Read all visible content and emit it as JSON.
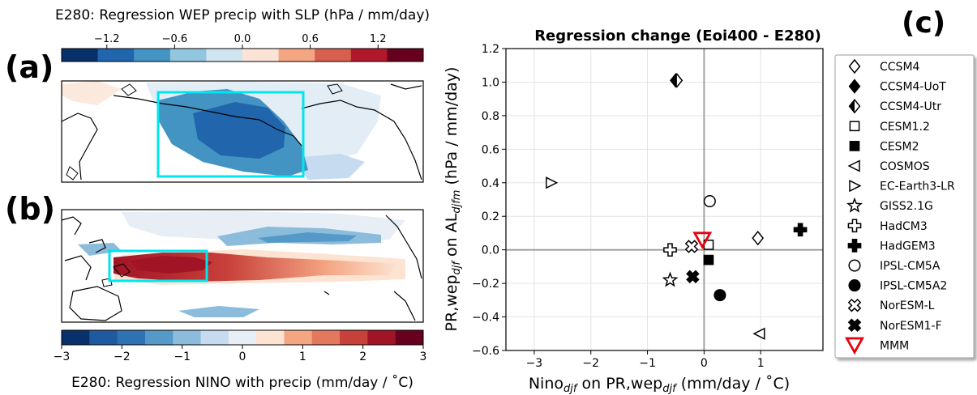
{
  "top_colorbar": {
    "title": "E280: Regression WEP precip with SLP (hPa / mm/day)",
    "ticks": [
      "−1.2",
      "−0.6",
      "0.0",
      "0.6",
      "1.2"
    ],
    "tick_values": [
      -1.2,
      -0.6,
      0.0,
      0.6,
      1.2
    ],
    "range": [
      -1.6,
      1.6
    ],
    "colors": [
      "#08306b",
      "#2166ac",
      "#4393c3",
      "#92c5de",
      "#d1e5f0",
      "#fbe4d6",
      "#f4a582",
      "#d6604d",
      "#b2182b",
      "#67001f"
    ]
  },
  "bottom_colorbar": {
    "title": "E280: Regression NINO with precip (mm/day / ˚C)",
    "ticks": [
      "−3",
      "−2",
      "−1",
      "0",
      "1",
      "2",
      "3"
    ],
    "tick_values": [
      -3,
      -2,
      -1,
      0,
      1,
      2,
      3
    ],
    "range": [
      -3,
      3
    ],
    "colors": [
      "#08306b",
      "#1f5aa0",
      "#2f72b4",
      "#5599c8",
      "#8cbcdb",
      "#c6dbef",
      "#e8eef5",
      "#fde3d2",
      "#f4a582",
      "#e3785e",
      "#c8403a",
      "#a01426",
      "#67001f"
    ]
  },
  "panel_labels": {
    "a": "(a)",
    "b": "(b)",
    "c": "(c)"
  },
  "chart_data": {
    "type": "scatter",
    "title": "Regression change (Eoi400 - E280)",
    "xlabel": {
      "pre": "Nino",
      "sub1": "djf",
      "mid": " on PR,wep",
      "sub2": "djf",
      "post": " (mm/day / ˚C)"
    },
    "ylabel": {
      "pre": "PR,wep",
      "sub1": "djf",
      "mid": " on AL",
      "sub2": "djfm",
      "post": " (hPa / mm/day)"
    },
    "xlim": [
      -3.5,
      2.1
    ],
    "ylim": [
      -0.6,
      1.2
    ],
    "xticks": [
      -3,
      -2,
      -1,
      0,
      1
    ],
    "xtick_labels": [
      "−3",
      "−2",
      "−1",
      "0",
      "1"
    ],
    "yticks": [
      -0.6,
      -0.4,
      -0.2,
      0.0,
      0.2,
      0.4,
      0.6,
      0.8,
      1.0,
      1.2
    ],
    "ytick_labels": [
      "−0.6",
      "−0.4",
      "−0.2",
      "0.0",
      "0.2",
      "0.4",
      "0.6",
      "0.8",
      "1.0",
      "1.2"
    ],
    "grid": true,
    "legend_position": "outside-right",
    "points": [
      {
        "name": "CCSM4",
        "marker": "diamond-open",
        "x": 0.95,
        "y": 0.07
      },
      {
        "name": "CCSM4-UoT",
        "marker": "diamond-filled",
        "x": -0.5,
        "y": 1.01
      },
      {
        "name": "CCSM4-Utr",
        "marker": "diamond-half",
        "x": -0.48,
        "y": 1.01
      },
      {
        "name": "CESM1.2",
        "marker": "square-open",
        "x": 0.08,
        "y": 0.03
      },
      {
        "name": "CESM2",
        "marker": "square-filled",
        "x": 0.08,
        "y": -0.06
      },
      {
        "name": "COSMOS",
        "marker": "triangle-left-open",
        "x": 0.98,
        "y": -0.5
      },
      {
        "name": "EC-Earth3-LR",
        "marker": "triangle-right-open",
        "x": -2.7,
        "y": 0.4
      },
      {
        "name": "GISS2.1G",
        "marker": "star-open",
        "x": -0.6,
        "y": -0.18
      },
      {
        "name": "HadCM3",
        "marker": "plus-open",
        "x": -0.6,
        "y": 0.0
      },
      {
        "name": "HadGEM3",
        "marker": "plus-filled",
        "x": 1.7,
        "y": 0.12
      },
      {
        "name": "IPSL-CM5A",
        "marker": "circle-open",
        "x": 0.1,
        "y": 0.29
      },
      {
        "name": "IPSL-CM5A2",
        "marker": "circle-filled",
        "x": 0.28,
        "y": -0.27
      },
      {
        "name": "NorESM-L",
        "marker": "x-open",
        "x": -0.22,
        "y": 0.02
      },
      {
        "name": "NorESM1-F",
        "marker": "x-filled",
        "x": -0.2,
        "y": -0.16
      },
      {
        "name": "MMM",
        "marker": "triangle-down-red",
        "x": -0.03,
        "y": 0.06
      }
    ]
  }
}
